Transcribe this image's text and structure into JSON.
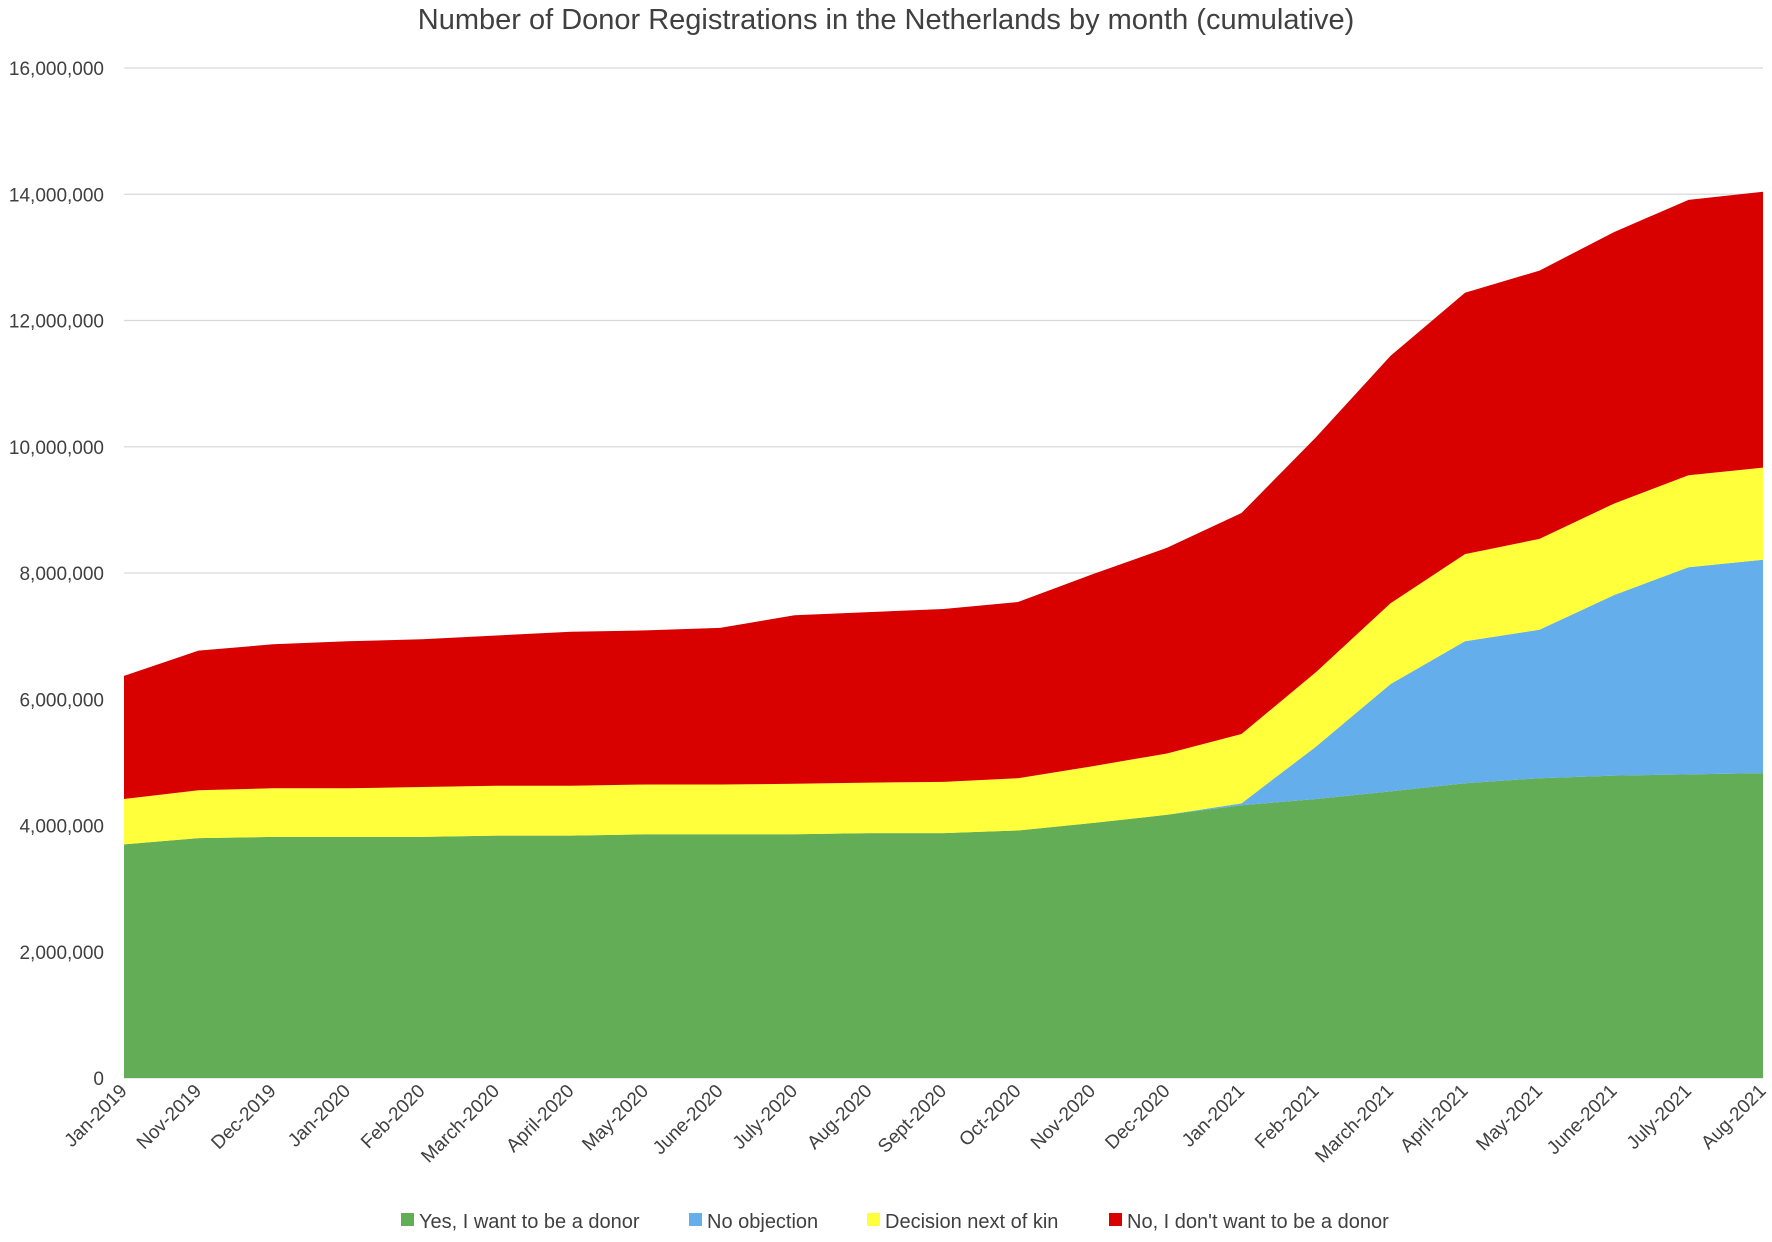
{
  "chart_data": {
    "type": "area",
    "stacked": true,
    "title": "Number of Donor Registrations in the Netherlands by month (cumulative)",
    "xlabel": "",
    "ylabel": "",
    "ylim": [
      0,
      16000000
    ],
    "yticks": [
      0,
      2000000,
      4000000,
      6000000,
      8000000,
      10000000,
      12000000,
      14000000,
      16000000
    ],
    "ytick_labels": [
      "0",
      "2,000,000",
      "4,000,000",
      "6,000,000",
      "8,000,000",
      "10,000,000",
      "12,000,000",
      "14,000,000",
      "16,000,000"
    ],
    "grid": true,
    "legend_position": "bottom",
    "categories": [
      "Jan-2019",
      "Nov-2019",
      "Dec-2019",
      "Jan-2020",
      "Feb-2020",
      "March-2020",
      "April-2020",
      "May-2020",
      "June-2020",
      "July-2020",
      "Aug-2020",
      "Sept-2020",
      "Oct-2020",
      "Nov-2020",
      "Dec-2020",
      "Jan-2021",
      "Feb-2021",
      "March-2021",
      "April-2021",
      "May-2021",
      "June-2021",
      "July-2021",
      "Aug-2021"
    ],
    "series": [
      {
        "name": "Yes, I want to be a donor",
        "color": "#64ad57",
        "values": [
          3700000,
          3800000,
          3820000,
          3820000,
          3820000,
          3840000,
          3840000,
          3860000,
          3860000,
          3860000,
          3880000,
          3880000,
          3920000,
          4040000,
          4170000,
          4320000,
          4420000,
          4540000,
          4670000,
          4750000,
          4790000,
          4810000,
          4830000
        ]
      },
      {
        "name": "No objection",
        "color": "#63aeeb",
        "values": [
          0,
          0,
          0,
          0,
          0,
          0,
          0,
          0,
          0,
          0,
          0,
          0,
          0,
          0,
          0,
          30000,
          830000,
          1700000,
          2250000,
          2350000,
          2860000,
          3280000,
          3380000
        ]
      },
      {
        "name": "Decision next of kin",
        "color": "#ffff3c",
        "values": [
          720000,
          760000,
          770000,
          770000,
          790000,
          790000,
          790000,
          790000,
          790000,
          800000,
          800000,
          810000,
          830000,
          900000,
          970000,
          1100000,
          1180000,
          1280000,
          1380000,
          1440000,
          1450000,
          1460000,
          1460000
        ]
      },
      {
        "name": "No, I don't want to be a donor",
        "color": "#d90000",
        "values": [
          1950000,
          2210000,
          2280000,
          2330000,
          2340000,
          2380000,
          2440000,
          2440000,
          2480000,
          2670000,
          2700000,
          2740000,
          2790000,
          3040000,
          3260000,
          3500000,
          3720000,
          3920000,
          4140000,
          4250000,
          4300000,
          4360000,
          4370000
        ]
      }
    ]
  }
}
